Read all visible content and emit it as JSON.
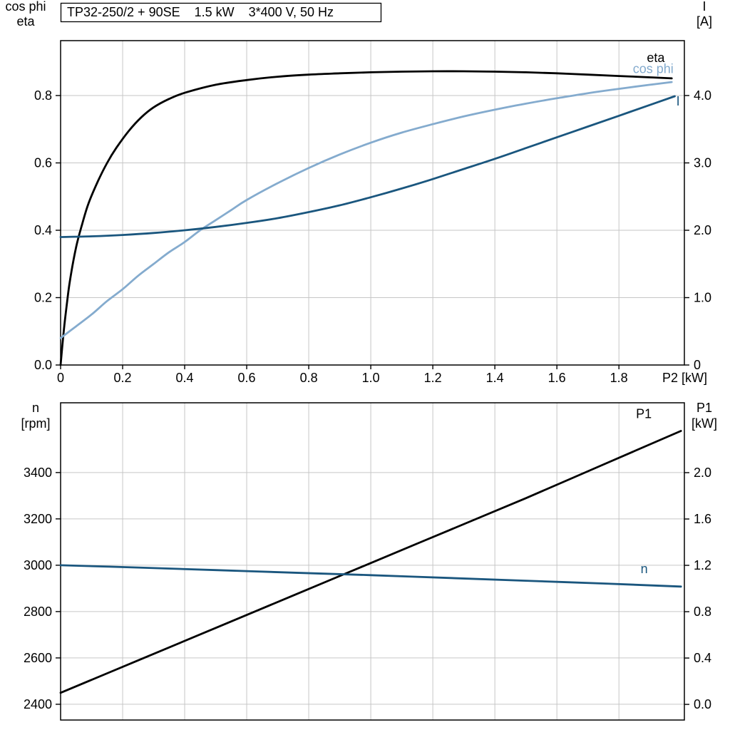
{
  "page": {
    "background": "#ffffff",
    "colors": {
      "black": "#000000",
      "dark_blue": "#1a567e",
      "light_blue": "#84abce",
      "grid": "#c6c6c6"
    }
  },
  "chart_data": [
    {
      "type": "line",
      "title": "TP32-250/2 + 90SE    1.5 kW    3*400 V, 50 Hz",
      "xlabel": "P2 [kW]",
      "xlim": [
        0,
        2.011
      ],
      "x_ticks": {
        "values": [
          0,
          0.2,
          0.4,
          0.6,
          0.8,
          1.0,
          1.2,
          1.4,
          1.6,
          1.8
        ],
        "labels": [
          "0",
          "0.2",
          "0.4",
          "0.6",
          "0.8",
          "1.0",
          "1.2",
          "1.4",
          "1.6",
          "1.8"
        ]
      },
      "left_axis": {
        "name": [
          "cos phi",
          "eta"
        ],
        "lim": [
          0,
          0.963
        ],
        "ticks": [
          0,
          0.2,
          0.4,
          0.6,
          0.8
        ],
        "tick_labels": [
          "0.0",
          "0.2",
          "0.4",
          "0.6",
          "0.8"
        ]
      },
      "right_axis": {
        "name": [
          "I",
          "[A]"
        ],
        "lim": [
          0,
          4.815
        ],
        "ticks": [
          0,
          1,
          2,
          3,
          4
        ],
        "tick_labels": [
          "0",
          "1.0",
          "2.0",
          "3.0",
          "4.0"
        ]
      },
      "grid": true,
      "legend_position": "curve-end-labels",
      "series": [
        {
          "name": "eta",
          "axis": "left",
          "color": "#000000",
          "x": [
            0,
            0.01,
            0.02,
            0.03,
            0.05,
            0.07,
            0.09,
            0.12,
            0.15,
            0.18,
            0.22,
            0.26,
            0.3,
            0.35,
            0.4,
            0.5,
            0.6,
            0.7,
            0.8,
            0.9,
            1.0,
            1.1,
            1.2,
            1.3,
            1.4,
            1.5,
            1.6,
            1.7,
            1.8,
            1.9,
            1.97
          ],
          "y": [
            0,
            0.1,
            0.18,
            0.25,
            0.35,
            0.42,
            0.48,
            0.545,
            0.6,
            0.645,
            0.695,
            0.735,
            0.765,
            0.79,
            0.808,
            0.832,
            0.846,
            0.856,
            0.862,
            0.866,
            0.869,
            0.871,
            0.872,
            0.872,
            0.871,
            0.869,
            0.866,
            0.862,
            0.858,
            0.854,
            0.851
          ]
        },
        {
          "name": "cos phi",
          "axis": "left",
          "color": "#84abce",
          "x": [
            0,
            0.05,
            0.1,
            0.15,
            0.2,
            0.25,
            0.3,
            0.35,
            0.4,
            0.45,
            0.5,
            0.55,
            0.6,
            0.7,
            0.8,
            0.9,
            1.0,
            1.1,
            1.2,
            1.3,
            1.4,
            1.5,
            1.6,
            1.7,
            1.8,
            1.9,
            1.97
          ],
          "y": [
            0.08,
            0.115,
            0.15,
            0.19,
            0.225,
            0.265,
            0.3,
            0.335,
            0.365,
            0.4,
            0.43,
            0.46,
            0.49,
            0.54,
            0.585,
            0.625,
            0.66,
            0.69,
            0.715,
            0.738,
            0.758,
            0.776,
            0.792,
            0.807,
            0.82,
            0.832,
            0.84
          ]
        },
        {
          "name": "I",
          "axis": "right",
          "color": "#1a567e",
          "x": [
            0,
            0.1,
            0.2,
            0.3,
            0.4,
            0.5,
            0.6,
            0.7,
            0.8,
            0.9,
            1.0,
            1.1,
            1.2,
            1.3,
            1.4,
            1.5,
            1.6,
            1.7,
            1.8,
            1.9,
            1.98
          ],
          "y": [
            1.9,
            1.91,
            1.93,
            1.96,
            2.0,
            2.05,
            2.11,
            2.18,
            2.27,
            2.37,
            2.49,
            2.62,
            2.76,
            2.91,
            3.06,
            3.22,
            3.38,
            3.54,
            3.7,
            3.86,
            3.99
          ]
        }
      ],
      "annotations": [
        {
          "text": "eta",
          "x": 1.89,
          "y": 0.9,
          "axis": "left",
          "color": "#000000"
        },
        {
          "text": "cos phi",
          "x": 1.845,
          "y": 0.867,
          "axis": "left",
          "color": "#84abce"
        },
        {
          "text": "I",
          "x": 1.985,
          "y": 3.85,
          "axis": "right",
          "color": "#1a567e"
        }
      ]
    },
    {
      "type": "line",
      "title": "",
      "xlabel": "",
      "xlim": [
        0,
        2.011
      ],
      "x_ticks": {
        "values": [
          0.2,
          0.4,
          0.6,
          0.8,
          1.0,
          1.2,
          1.4,
          1.6,
          1.8
        ],
        "labels": []
      },
      "left_axis": {
        "name": [
          "n",
          "[rpm]"
        ],
        "lim": [
          2332,
          3701
        ],
        "ticks": [
          2400,
          2600,
          2800,
          3000,
          3200,
          3400
        ],
        "tick_labels": [
          "2400",
          "2600",
          "2800",
          "3000",
          "3200",
          "3400"
        ]
      },
      "right_axis": {
        "name": [
          "P1",
          "[kW]"
        ],
        "lim": [
          -0.135,
          2.603
        ],
        "ticks": [
          0.0,
          0.4,
          0.8,
          1.2,
          1.6,
          2.0
        ],
        "tick_labels": [
          "0.0",
          "0.4",
          "0.8",
          "1.2",
          "1.6",
          "2.0"
        ]
      },
      "grid": true,
      "legend_position": "curve-end-labels",
      "series": [
        {
          "name": "P1",
          "axis": "right",
          "color": "#000000",
          "x": [
            0,
            0.25,
            0.5,
            0.75,
            1.0,
            1.25,
            1.5,
            1.75,
            2.0
          ],
          "y": [
            0.1,
            0.38,
            0.66,
            0.94,
            1.22,
            1.5,
            1.78,
            2.07,
            2.36
          ]
        },
        {
          "name": "n",
          "axis": "left",
          "color": "#1a567e",
          "x": [
            0,
            0.25,
            0.5,
            0.75,
            1.0,
            1.25,
            1.5,
            1.75,
            2.0
          ],
          "y": [
            3000,
            2990,
            2979,
            2968,
            2957,
            2945,
            2933,
            2921,
            2908
          ]
        }
      ],
      "annotations": [
        {
          "text": "P1",
          "x": 1.855,
          "y": 2.47,
          "axis": "right",
          "color": "#000000"
        },
        {
          "text": "n",
          "x": 1.87,
          "y": 2966,
          "axis": "left",
          "color": "#1a567e"
        }
      ]
    }
  ]
}
